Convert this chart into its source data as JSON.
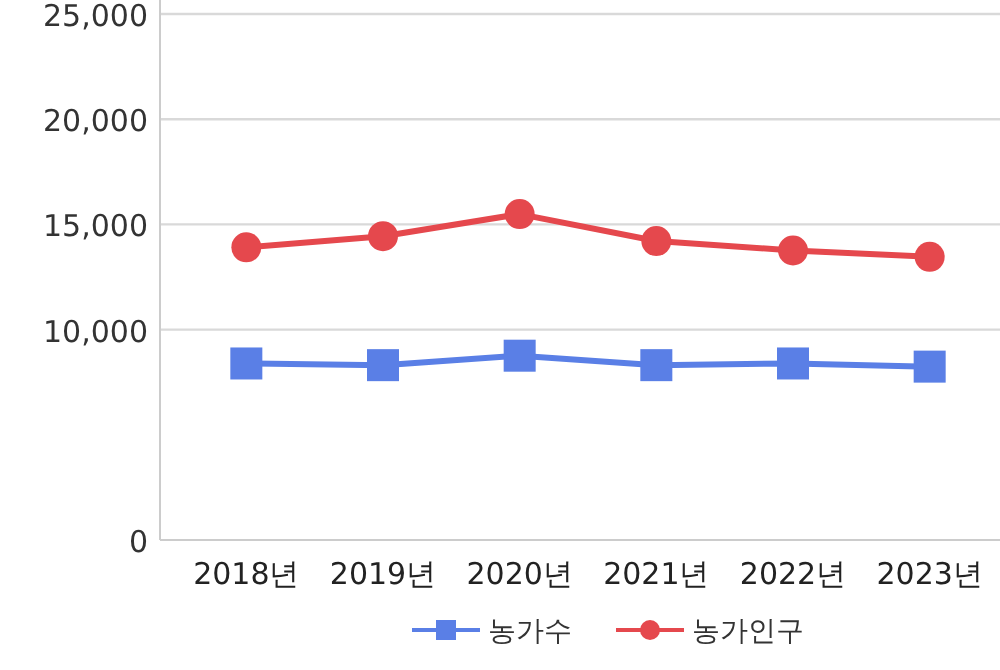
{
  "chart_data": {
    "type": "line",
    "categories": [
      "2018년",
      "2019년",
      "2020년",
      "2021년",
      "2022년",
      "2023년"
    ],
    "series": [
      {
        "name": "농가수",
        "color": "#5a7fe6",
        "marker": "square",
        "values": [
          8390,
          8310,
          8760,
          8310,
          8390,
          8240
        ]
      },
      {
        "name": "농가인구",
        "color": "#e5484d",
        "marker": "circle",
        "values": [
          13910,
          14440,
          15490,
          14210,
          13760,
          13460
        ]
      }
    ],
    "ylim": [
      0,
      25000
    ],
    "yticks": [
      0,
      {
        "value": 10000,
        "label": "10,000"
      },
      {
        "value": 15000,
        "label": "15,000"
      },
      {
        "value": 20000,
        "label": "20,000"
      },
      {
        "value": 25000,
        "label": "25,000"
      }
    ],
    "grid": "y",
    "legend": "bottom"
  }
}
